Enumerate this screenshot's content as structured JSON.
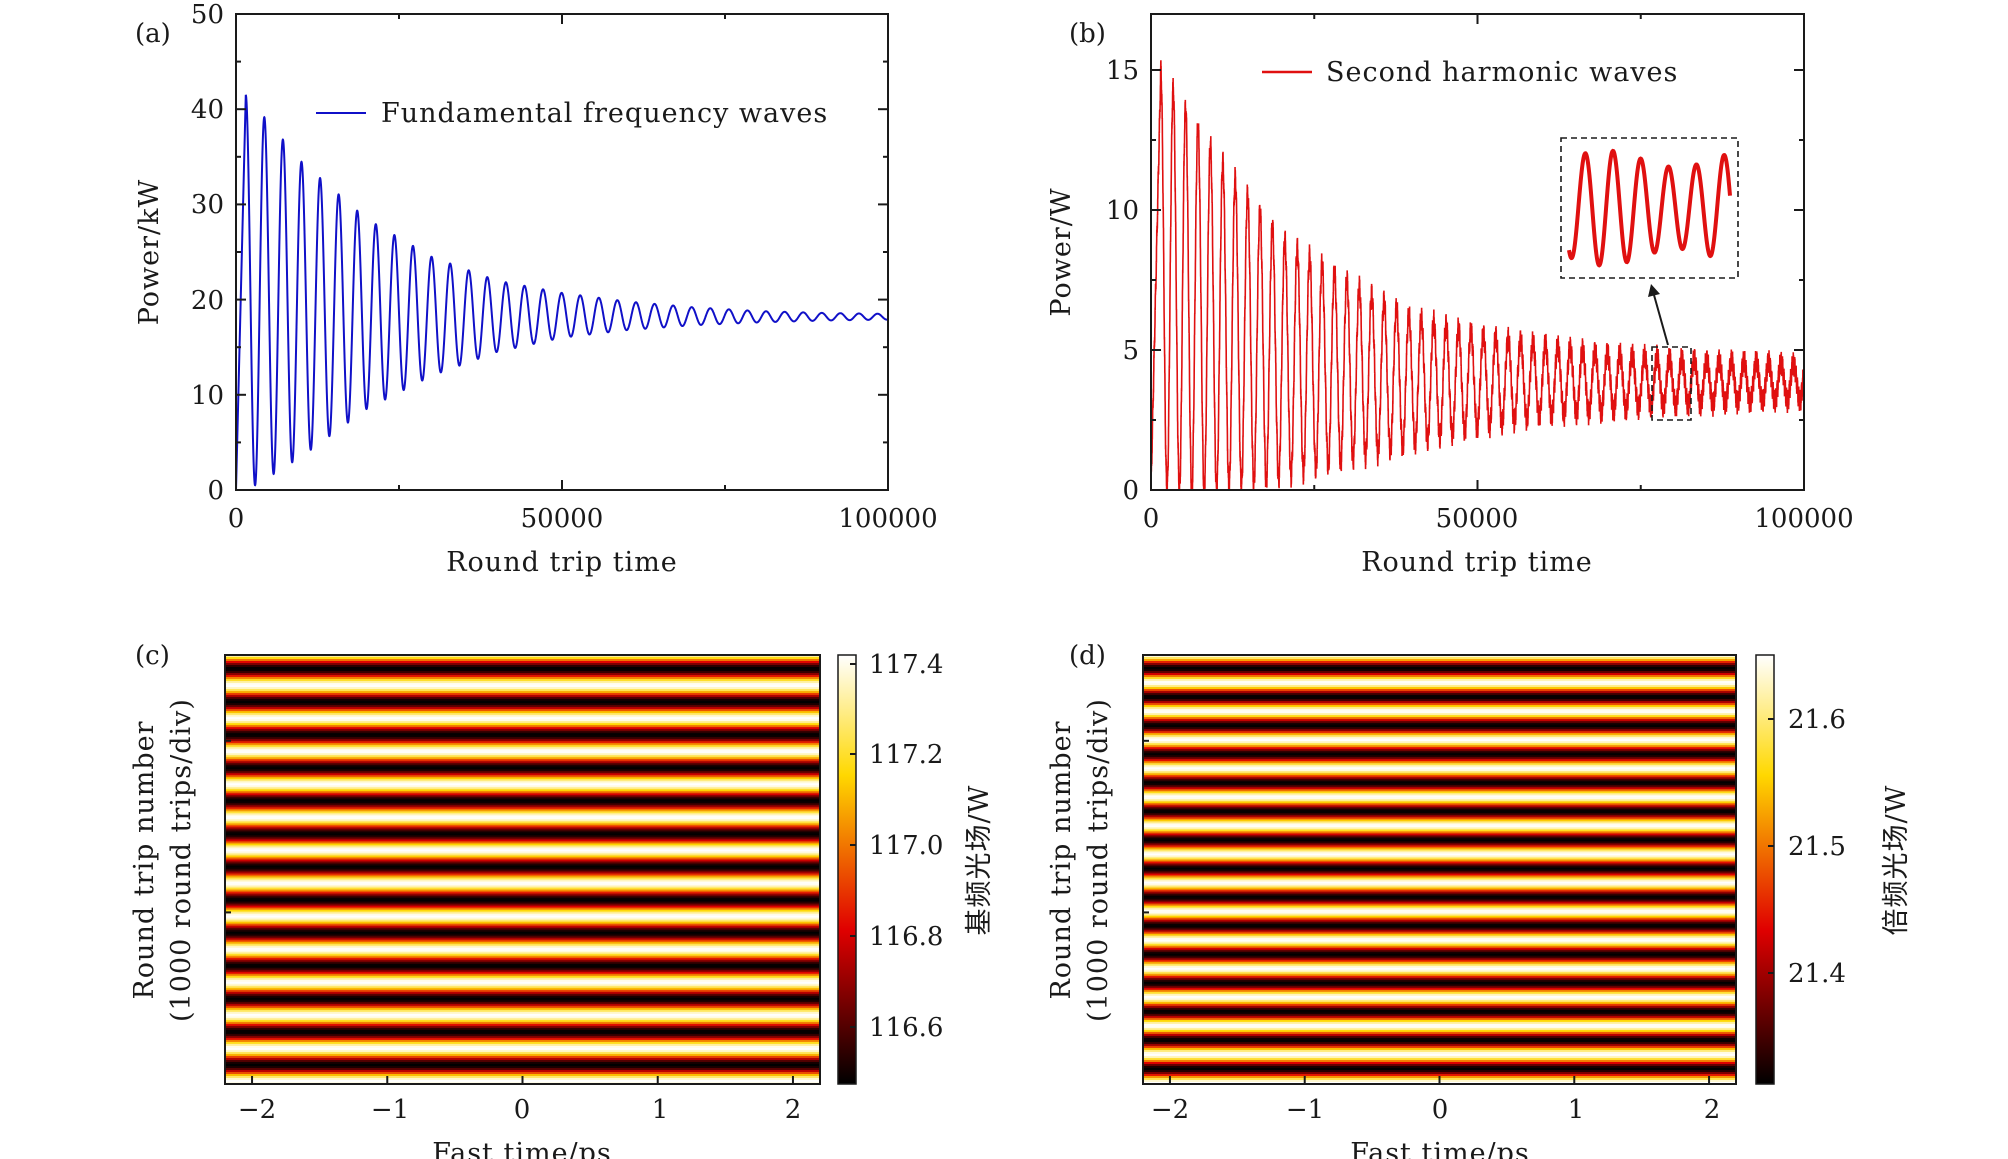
{
  "chart_data": [
    {
      "panel": "(a)",
      "type": "line",
      "xlabel": "Round trip time",
      "ylabel": "Power/kW",
      "xlim": [
        0,
        100000
      ],
      "ylim": [
        0,
        50
      ],
      "xticks": [
        "0",
        "50000",
        "100000"
      ],
      "yticks": [
        "0",
        "10",
        "20",
        "30",
        "40",
        "50"
      ],
      "series": [
        {
          "name": "Fundamental frequency waves",
          "color": "#1010c8",
          "steady_value": 18.2,
          "peaks": [
            {
              "x": 1500,
              "y": 41.5
            },
            {
              "x": 10000,
              "y": 34.5
            },
            {
              "x": 20000,
              "y": 28.5
            },
            {
              "x": 30000,
              "y": 24.5
            },
            {
              "x": 40000,
              "y": 22.0
            },
            {
              "x": 50000,
              "y": 20.7
            },
            {
              "x": 60000,
              "y": 19.8
            },
            {
              "x": 70000,
              "y": 19.2
            },
            {
              "x": 80000,
              "y": 18.8
            },
            {
              "x": 90000,
              "y": 18.6
            },
            {
              "x": 100000,
              "y": 18.5
            }
          ],
          "troughs": [
            {
              "x": 3000,
              "y": 0.5
            },
            {
              "x": 10000,
              "y": 3.5
            },
            {
              "x": 20000,
              "y": 8.5
            },
            {
              "x": 30000,
              "y": 12.0
            },
            {
              "x": 40000,
              "y": 14.5
            },
            {
              "x": 50000,
              "y": 16.0
            },
            {
              "x": 60000,
              "y": 16.8
            },
            {
              "x": 70000,
              "y": 17.3
            },
            {
              "x": 80000,
              "y": 17.6
            },
            {
              "x": 90000,
              "y": 17.8
            },
            {
              "x": 100000,
              "y": 17.9
            }
          ]
        }
      ],
      "legend_position": "top-right"
    },
    {
      "panel": "(b)",
      "type": "line",
      "xlabel": "Round trip time",
      "ylabel": "Power/W",
      "xlim": [
        0,
        100000
      ],
      "ylim": [
        0,
        17
      ],
      "xticks": [
        "0",
        "50000",
        "100000"
      ],
      "yticks": [
        "0",
        "5",
        "10",
        "15"
      ],
      "series": [
        {
          "name": "Second harmonic waves",
          "color": "#e01010",
          "steady_value": 3.7,
          "peaks": [
            {
              "x": 1500,
              "y": 15.0
            },
            {
              "x": 10000,
              "y": 12.0
            },
            {
              "x": 20000,
              "y": 9.0
            },
            {
              "x": 30000,
              "y": 7.5
            },
            {
              "x": 40000,
              "y": 6.2
            },
            {
              "x": 50000,
              "y": 5.6
            },
            {
              "x": 60000,
              "y": 5.2
            },
            {
              "x": 70000,
              "y": 4.9
            },
            {
              "x": 80000,
              "y": 4.7
            },
            {
              "x": 90000,
              "y": 4.6
            },
            {
              "x": 100000,
              "y": 4.5
            }
          ],
          "troughs": [
            {
              "x": 3000,
              "y": 0.0
            },
            {
              "x": 10000,
              "y": 0.0
            },
            {
              "x": 20000,
              "y": 0.4
            },
            {
              "x": 30000,
              "y": 1.0
            },
            {
              "x": 40000,
              "y": 1.6
            },
            {
              "x": 50000,
              "y": 2.2
            },
            {
              "x": 60000,
              "y": 2.6
            },
            {
              "x": 70000,
              "y": 2.8
            },
            {
              "x": 80000,
              "y": 3.0
            },
            {
              "x": 90000,
              "y": 3.1
            },
            {
              "x": 100000,
              "y": 3.2
            }
          ]
        }
      ],
      "inset": {
        "x_range": [
          76500,
          82500
        ],
        "y_range": [
          2.5,
          5.3
        ]
      },
      "legend_position": "top-right"
    },
    {
      "panel": "(c)",
      "type": "heatmap",
      "xlabel": "Fast time/ps",
      "ylabel_line1": "Round trip number",
      "ylabel_line2": "(1000 round trips/div)",
      "xlim": [
        -2.2,
        2.2
      ],
      "xticks": [
        "−2",
        "−1",
        "0",
        "1",
        "2"
      ],
      "colorbar_label": "基频光场/W",
      "colorbar_range": [
        116.48,
        117.44
      ],
      "colorbar_ticks": [
        "116.6",
        "116.8",
        "117.0",
        "117.2",
        "117.4"
      ],
      "stripes": 13,
      "colormap": "hot"
    },
    {
      "panel": "(d)",
      "type": "heatmap",
      "xlabel": "Fast time/ps",
      "ylabel_line1": "Round trip number",
      "ylabel_line2": "(1000 round trips/div)",
      "xlim": [
        -2.2,
        2.2
      ],
      "xticks": [
        "−2",
        "−1",
        "0",
        "1",
        "2"
      ],
      "colorbar_label": "倍频光场/W",
      "colorbar_range": [
        21.31,
        21.645
      ],
      "colorbar_ticks": [
        "21.4",
        "21.5",
        "21.6"
      ],
      "stripes": 15,
      "colormap": "hot"
    }
  ]
}
